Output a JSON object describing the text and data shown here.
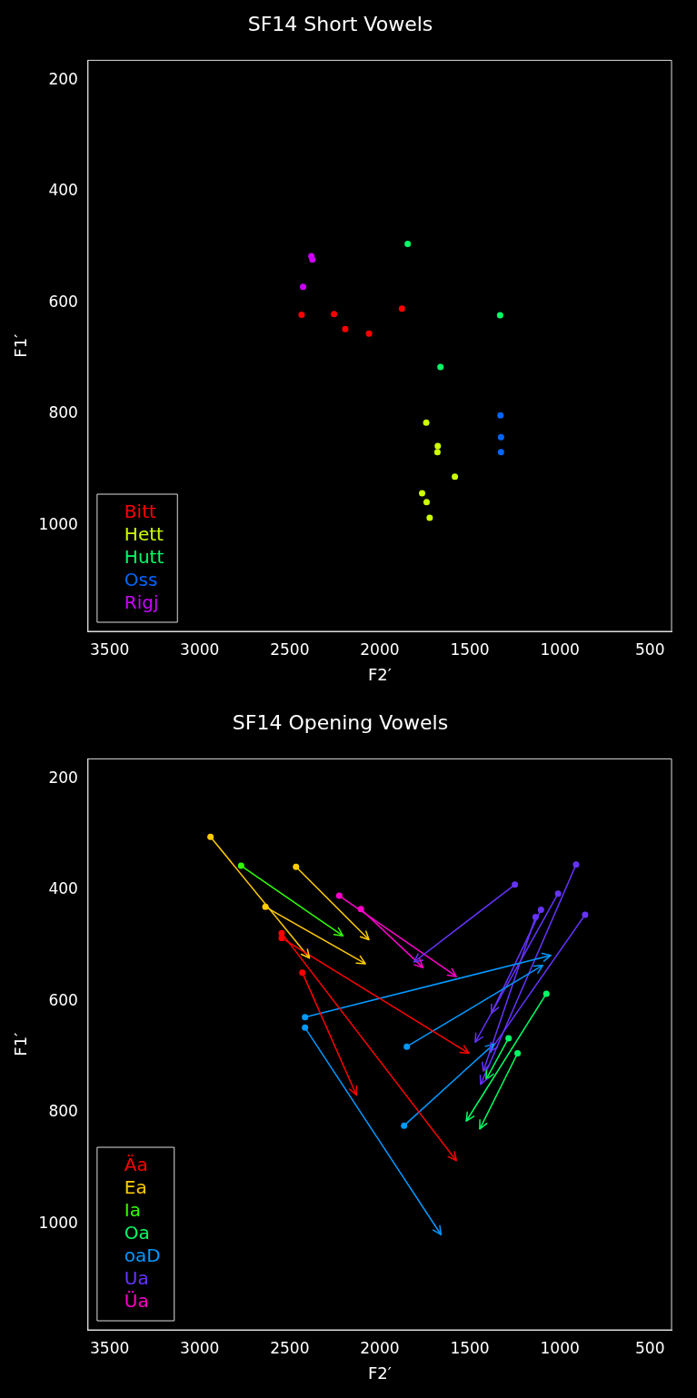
{
  "chart_data": [
    {
      "type": "scatter",
      "title": "SF14 Short Vowels",
      "xlabel": "F2′",
      "ylabel": "F1′",
      "xlim": [
        3620,
        380
      ],
      "ylim": [
        1190,
        164
      ],
      "xticks": [
        3500,
        3000,
        2500,
        2000,
        1500,
        1000,
        500
      ],
      "yticks": [
        200,
        400,
        600,
        800,
        1000
      ],
      "grid": false,
      "legend": "bottom left",
      "marker": "circle",
      "series": [
        {
          "name": "Bitt",
          "color": "#ff0000",
          "x": [
            2434,
            2254,
            2192,
            2060,
            1877
          ],
          "values": [
            621,
            620,
            647,
            655,
            610
          ]
        },
        {
          "name": "Hett",
          "color": "#ccff00",
          "x": [
            1742,
            1678,
            1680,
            1583,
            1765,
            1740,
            1723
          ],
          "values": [
            815,
            857,
            868,
            912,
            942,
            958,
            986
          ]
        },
        {
          "name": "Hutt",
          "color": "#00ff66",
          "x": [
            1845,
            1332,
            1663
          ],
          "values": [
            494,
            622,
            715
          ]
        },
        {
          "name": "Oss",
          "color": "#0066ff",
          "x": [
            1330,
            1327,
            1327
          ],
          "values": [
            802,
            841,
            868
          ]
        },
        {
          "name": "Rigj",
          "color": "#cc00ff",
          "x": [
            2380,
            2374,
            2426
          ],
          "values": [
            516,
            522,
            571
          ]
        }
      ]
    },
    {
      "type": "line",
      "title": "SF14 Opening Vowels",
      "xlabel": "F2′",
      "ylabel": "F1′",
      "xlim": [
        3620,
        380
      ],
      "ylim": [
        1190,
        164
      ],
      "xticks": [
        3500,
        3000,
        2500,
        2000,
        1500,
        1000,
        500
      ],
      "yticks": [
        200,
        400,
        600,
        800,
        1000
      ],
      "grid": false,
      "legend": "bottom left",
      "marker": "circle",
      "series": [
        {
          "name": "Äa",
          "color": "#ff0000",
          "x": [
            2545,
            1575
          ],
          "values": [
            477,
            886
          ]
        },
        {
          "color": "#ff0000",
          "x": [
            2545,
            1505
          ],
          "values": [
            486,
            693
          ]
        },
        {
          "color": "#ff0000",
          "x": [
            2430,
            2130
          ],
          "values": [
            548,
            768
          ]
        },
        {
          "name": "Ea",
          "color": "#ffcc00",
          "x": [
            2940,
            2390
          ],
          "values": [
            304,
            522
          ]
        },
        {
          "color": "#ffcc00",
          "x": [
            2635,
            2080
          ],
          "values": [
            430,
            532
          ]
        },
        {
          "color": "#ffcc00",
          "x": [
            2465,
            2060
          ],
          "values": [
            358,
            489
          ]
        },
        {
          "name": "Ia",
          "color": "#33ff00",
          "x": [
            2770,
            2205
          ],
          "values": [
            356,
            482
          ]
        },
        {
          "name": "Oa",
          "color": "#00ff66",
          "x": [
            1075,
            1520
          ],
          "values": [
            586,
            815
          ]
        },
        {
          "color": "#00ff66",
          "x": [
            1285,
            1410
          ],
          "values": [
            666,
            740
          ]
        },
        {
          "color": "#00ff66",
          "x": [
            1235,
            1445
          ],
          "values": [
            693,
            829
          ]
        },
        {
          "name": "oaD",
          "color": "#0099ff",
          "x": [
            2415,
            1050
          ],
          "values": [
            628,
            517
          ]
        },
        {
          "color": "#0099ff",
          "x": [
            2415,
            1660
          ],
          "values": [
            647,
            1019
          ]
        },
        {
          "color": "#0099ff",
          "x": [
            1850,
            1095
          ],
          "values": [
            681,
            535
          ]
        },
        {
          "color": "#0099ff",
          "x": [
            1865,
            1365
          ],
          "values": [
            823,
            676
          ]
        },
        {
          "name": "Ua",
          "color": "#6633ff",
          "x": [
            1250,
            1810
          ],
          "values": [
            390,
            529
          ]
        },
        {
          "color": "#6633ff",
          "x": [
            910,
            1440
          ],
          "values": [
            354,
            749
          ]
        },
        {
          "color": "#6633ff",
          "x": [
            860,
            1390
          ],
          "values": [
            444,
            690
          ]
        },
        {
          "color": "#6633ff",
          "x": [
            1010,
            1470
          ],
          "values": [
            406,
            673
          ]
        },
        {
          "color": "#6633ff",
          "x": [
            1105,
            1380
          ],
          "values": [
            435,
            621
          ]
        },
        {
          "color": "#6633ff",
          "x": [
            1135,
            1425
          ],
          "values": [
            448,
            725
          ]
        },
        {
          "name": "Üa",
          "color": "#ff00cc",
          "x": [
            2225,
            1575
          ],
          "values": [
            410,
            555
          ]
        },
        {
          "color": "#ff00cc",
          "x": [
            2105,
            1760
          ],
          "values": [
            434,
            539
          ]
        }
      ]
    }
  ]
}
